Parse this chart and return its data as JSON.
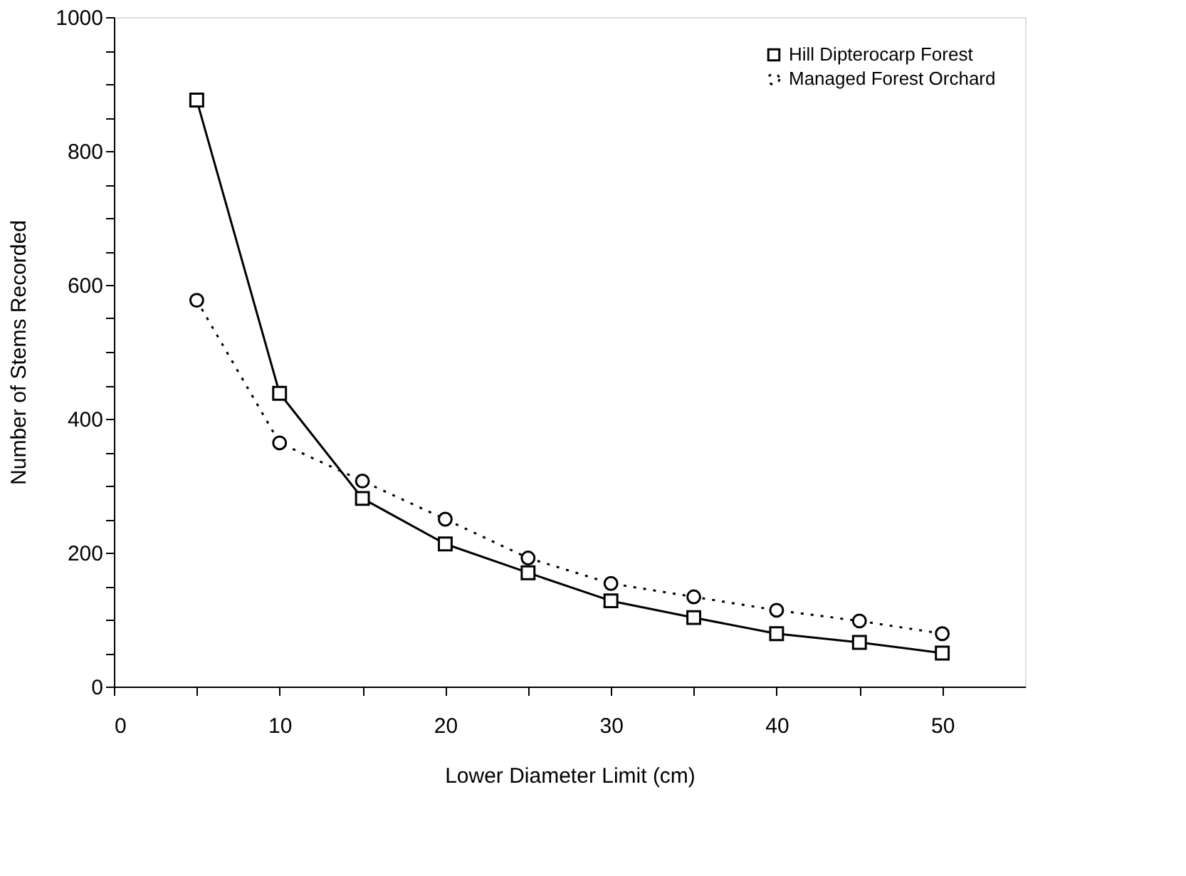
{
  "chart_data": {
    "type": "line",
    "xlabel": "Lower Diameter Limit (cm)",
    "ylabel": "Number of Stems Recorded",
    "x": [
      5,
      10,
      15,
      20,
      25,
      30,
      35,
      40,
      45,
      50
    ],
    "series": [
      {
        "name": "Hill Dipterocarp Forest",
        "color": "#000000",
        "marker": "square",
        "line_style": "solid",
        "values": [
          876,
          438,
          281,
          213,
          170,
          128,
          103,
          79,
          66,
          50
        ]
      },
      {
        "name": "Managed Forest Orchard",
        "color": "#000000",
        "marker": "circle",
        "line_style": "dotted",
        "values": [
          577,
          364,
          307,
          250,
          192,
          154,
          134,
          114,
          98,
          79
        ]
      }
    ],
    "xlim": [
      0,
      55
    ],
    "ylim": [
      0,
      1000
    ],
    "xticks": [
      0,
      {
        "value": 5,
        "label": null
      },
      10,
      {
        "value": 15,
        "label": null
      },
      20,
      {
        "value": 25,
        "label": null
      },
      30,
      {
        "value": 35,
        "label": null
      },
      40,
      {
        "value": 45,
        "label": null
      },
      50
    ],
    "yticks": [
      0,
      {
        "value": 50,
        "label": null
      },
      {
        "value": 100,
        "label": null
      },
      {
        "value": 150,
        "label": null
      },
      200,
      {
        "value": 250,
        "label": null
      },
      {
        "value": 300,
        "label": null
      },
      {
        "value": 350,
        "label": null
      },
      400,
      {
        "value": 450,
        "label": null
      },
      {
        "value": 500,
        "label": null
      },
      {
        "value": 550,
        "label": null
      },
      600,
      {
        "value": 650,
        "label": null
      },
      {
        "value": 700,
        "label": null
      },
      {
        "value": 750,
        "label": null
      },
      800,
      {
        "value": 850,
        "label": null
      },
      {
        "value": 900,
        "label": null
      },
      {
        "value": 950,
        "label": null
      },
      1000
    ],
    "grid": false,
    "legend": "top right"
  }
}
